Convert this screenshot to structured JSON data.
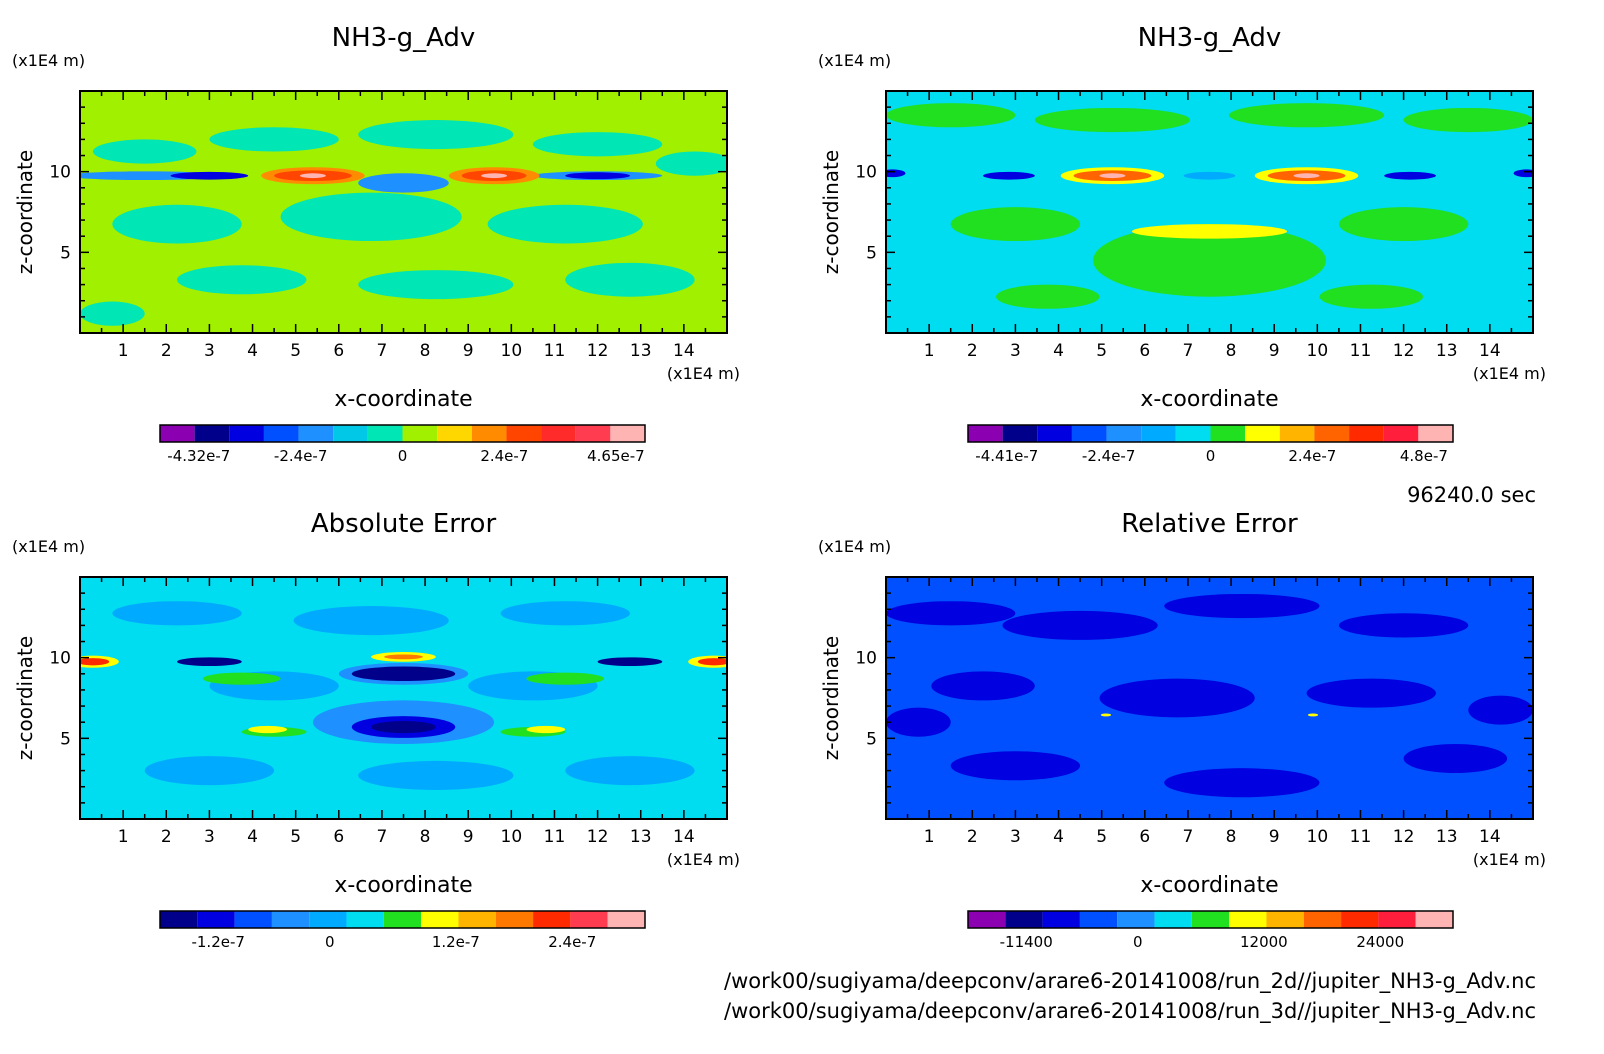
{
  "timestamp": "96240.0 sec",
  "files": [
    "/work00/sugiyama/deepconv/arare6-20141008/run_2d//jupiter_NH3-g_Adv.nc",
    "/work00/sugiyama/deepconv/arare6-20141008/run_3d//jupiter_NH3-g_Adv.nc"
  ],
  "chart_data": [
    {
      "type": "heatmap",
      "title": "NH3-g_Adv",
      "xlabel": "x-coordinate",
      "ylabel": "z-coordinate",
      "x_unit": "(x1E4 m)",
      "y_unit": "(x1E4 m)",
      "xlim": [
        0,
        15
      ],
      "ylim": [
        0,
        15
      ],
      "x_ticks": [
        "1",
        "2",
        "3",
        "4",
        "5",
        "6",
        "7",
        "8",
        "9",
        "10",
        "11",
        "12",
        "13",
        "14"
      ],
      "y_ticks": [
        "5",
        "10"
      ],
      "colorbar": {
        "colors": [
          "#8b00b0",
          "#00008b",
          "#0000e0",
          "#0050ff",
          "#1e90ff",
          "#00c8e6",
          "#00e6b4",
          "#a0f000",
          "#ffd700",
          "#ff8c00",
          "#ff4500",
          "#ff2a2a",
          "#ff3c50",
          "#ffb4b4"
        ],
        "labels": [
          "-4.32e-7",
          "-2.4e-7",
          "0",
          "2.4e-7",
          "4.65e-7"
        ]
      }
    },
    {
      "type": "heatmap",
      "title": "NH3-g_Adv",
      "xlabel": "x-coordinate",
      "ylabel": "z-coordinate",
      "x_unit": "(x1E4 m)",
      "y_unit": "(x1E4 m)",
      "xlim": [
        0,
        15
      ],
      "ylim": [
        0,
        15
      ],
      "x_ticks": [
        "1",
        "2",
        "3",
        "4",
        "5",
        "6",
        "7",
        "8",
        "9",
        "10",
        "11",
        "12",
        "13",
        "14"
      ],
      "y_ticks": [
        "5",
        "10"
      ],
      "colorbar": {
        "colors": [
          "#8b00b0",
          "#00008b",
          "#0000e0",
          "#0050ff",
          "#1e90ff",
          "#00aaff",
          "#00dcf0",
          "#20e020",
          "#ffff00",
          "#ffb400",
          "#ff6400",
          "#ff2a00",
          "#ff1e3c",
          "#ffb4b4"
        ],
        "labels": [
          "-4.41e-7",
          "-2.4e-7",
          "0",
          "2.4e-7",
          "4.8e-7"
        ]
      }
    },
    {
      "type": "heatmap",
      "title": "Absolute Error",
      "xlabel": "x-coordinate",
      "ylabel": "z-coordinate",
      "x_unit": "(x1E4 m)",
      "y_unit": "(x1E4 m)",
      "xlim": [
        0,
        15
      ],
      "ylim": [
        0,
        15
      ],
      "x_ticks": [
        "1",
        "2",
        "3",
        "4",
        "5",
        "6",
        "7",
        "8",
        "9",
        "10",
        "11",
        "12",
        "13",
        "14"
      ],
      "y_ticks": [
        "5",
        "10"
      ],
      "colorbar": {
        "colors": [
          "#00008b",
          "#0000e0",
          "#0050ff",
          "#1e90ff",
          "#00aaff",
          "#00dcf0",
          "#20e020",
          "#ffff00",
          "#ffb400",
          "#ff7800",
          "#ff2a00",
          "#ff3c50",
          "#ffb4b4"
        ],
        "labels": [
          "-1.2e-7",
          "0",
          "1.2e-7",
          "2.4e-7"
        ]
      }
    },
    {
      "type": "heatmap",
      "title": "Relative Error",
      "xlabel": "x-coordinate",
      "ylabel": "z-coordinate",
      "x_unit": "(x1E4 m)",
      "y_unit": "(x1E4 m)",
      "xlim": [
        0,
        15
      ],
      "ylim": [
        0,
        15
      ],
      "x_ticks": [
        "1",
        "2",
        "3",
        "4",
        "5",
        "6",
        "7",
        "8",
        "9",
        "10",
        "11",
        "12",
        "13",
        "14"
      ],
      "y_ticks": [
        "5",
        "10"
      ],
      "colorbar": {
        "colors": [
          "#8b00b0",
          "#00008b",
          "#0000e0",
          "#0050ff",
          "#1e90ff",
          "#00dcf0",
          "#20e020",
          "#ffff00",
          "#ffb400",
          "#ff6400",
          "#ff2a00",
          "#ff1e3c",
          "#ffb4b4"
        ],
        "labels": [
          "-11400",
          "0",
          "12000",
          "24000"
        ]
      }
    }
  ]
}
